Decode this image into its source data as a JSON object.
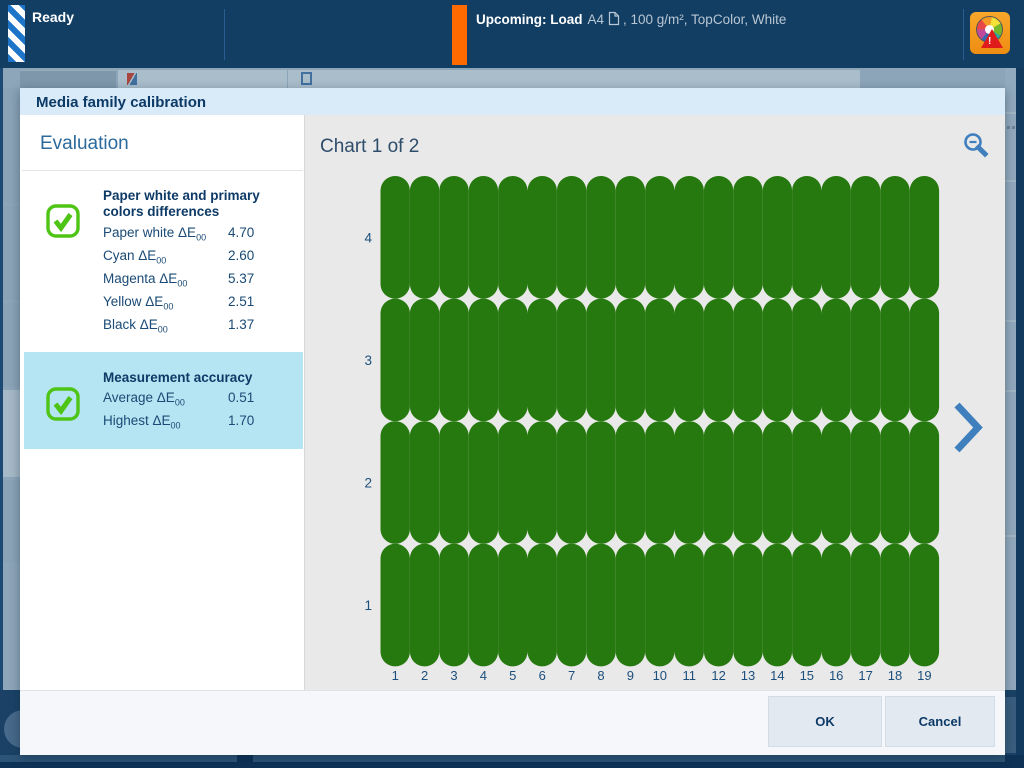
{
  "top_bar": {
    "status_text": "Ready",
    "upcoming_label": "Upcoming: Load",
    "upcoming_media": "A4",
    "upcoming_details": ", 100 g/m², TopColor, White",
    "colors": {
      "bar_bg": "#123e63",
      "accent_orange": "#ff6a00"
    }
  },
  "dialog": {
    "title": "Media family calibration",
    "evaluation": {
      "heading": "Evaluation",
      "sections": [
        {
          "title": "Paper white and primary colors differences",
          "status": "pass",
          "selected": false,
          "metrics": [
            {
              "label": "Paper white ΔE",
              "sub": "00",
              "value": "4.70"
            },
            {
              "label": "Cyan ΔE",
              "sub": "00",
              "value": "2.60"
            },
            {
              "label": "Magenta ΔE",
              "sub": "00",
              "value": "5.37"
            },
            {
              "label": "Yellow ΔE",
              "sub": "00",
              "value": "2.51"
            },
            {
              "label": "Black ΔE",
              "sub": "00",
              "value": "1.37"
            }
          ]
        },
        {
          "title": "Measurement accuracy",
          "status": "pass",
          "selected": true,
          "metrics": [
            {
              "label": "Average ΔE",
              "sub": "00",
              "value": "0.51"
            },
            {
              "label": "Highest ΔE",
              "sub": "00",
              "value": "1.70"
            }
          ]
        }
      ]
    },
    "chart_panel": {
      "title": "Chart 1 of 2"
    },
    "footer": {
      "ok_label": "OK",
      "cancel_label": "Cancel"
    }
  },
  "chart_data": {
    "type": "scatter",
    "title": "Chart 1 of 2",
    "x_labels": [
      1,
      2,
      3,
      4,
      5,
      6,
      7,
      8,
      9,
      10,
      11,
      12,
      13,
      14,
      15,
      16,
      17,
      18,
      19
    ],
    "row_labels_top_to_bottom": [
      4,
      3,
      2,
      1
    ],
    "marker": {
      "shape": "round-pill",
      "color": "#26790e",
      "meaning": "calibration patch measured OK"
    },
    "series": [
      {
        "name": "Row 4",
        "columns_filled": [
          1,
          2,
          3,
          4,
          5,
          6,
          7,
          8,
          9,
          10,
          11,
          12,
          13,
          14,
          15,
          16,
          17,
          18,
          19
        ]
      },
      {
        "name": "Row 3",
        "columns_filled": [
          1,
          2,
          3,
          4,
          5,
          6,
          7,
          8,
          9,
          10,
          11,
          12,
          13,
          14,
          15,
          16,
          17,
          18,
          19
        ]
      },
      {
        "name": "Row 2",
        "columns_filled": [
          1,
          2,
          3,
          4,
          5,
          6,
          7,
          8,
          9,
          10,
          11,
          12,
          13,
          14,
          15,
          16,
          17,
          18,
          19
        ]
      },
      {
        "name": "Row 1",
        "columns_filled": [
          1,
          2,
          3,
          4,
          5,
          6,
          7,
          8,
          9,
          10,
          11,
          12,
          13,
          14,
          15,
          16,
          17,
          18,
          19
        ]
      }
    ],
    "legend": "none",
    "grid": "off",
    "axis_text_color": "#1d4f7c"
  },
  "colors": {
    "selected_section_bg": "#b5e5f2",
    "check_green": "#4ec415",
    "chart_green": "#26790e",
    "navy_text": "#0d3a66",
    "blue_icon": "#3f7fbe"
  }
}
